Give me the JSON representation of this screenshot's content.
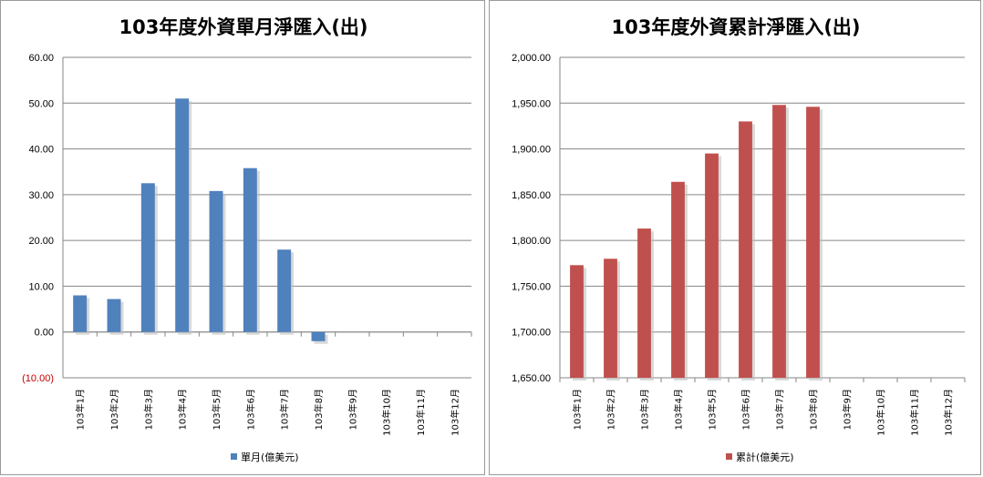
{
  "chart_data": [
    {
      "type": "bar",
      "title": "103年度外資單月淨匯入(出)",
      "categories": [
        "103年1月",
        "103年2月",
        "103年3月",
        "103年4月",
        "103年5月",
        "103年6月",
        "103年7月",
        "103年8月",
        "103年9月",
        "103年10月",
        "103年11月",
        "103年12月"
      ],
      "series": [
        {
          "name": "單月(億美元)",
          "values": [
            8.0,
            7.2,
            32.5,
            51.0,
            30.8,
            35.8,
            18.0,
            -2.0,
            null,
            null,
            null,
            null
          ]
        }
      ],
      "ylim": [
        -10,
        60
      ],
      "yticks": [
        -10,
        0,
        10,
        20,
        30,
        40,
        50,
        60
      ],
      "ytick_labels": [
        "(10.00)",
        "0.00",
        "10.00",
        "20.00",
        "30.00",
        "40.00",
        "50.00",
        "60.00"
      ],
      "color": "#4f81bd",
      "negative_label_color": "#c00000",
      "legend_position": "bottom-center",
      "grid": true
    },
    {
      "type": "bar",
      "title": "103年度外資累計淨匯入(出)",
      "categories": [
        "103年1月",
        "103年2月",
        "103年3月",
        "103年4月",
        "103年5月",
        "103年6月",
        "103年7月",
        "103年8月",
        "103年9月",
        "103年10月",
        "103年11月",
        "103年12月"
      ],
      "series": [
        {
          "name": "累計(億美元)",
          "values": [
            1773,
            1780,
            1813,
            1864,
            1895,
            1930,
            1948,
            1946,
            null,
            null,
            null,
            null
          ]
        }
      ],
      "ylim": [
        1650,
        2000
      ],
      "yticks": [
        1650,
        1700,
        1750,
        1800,
        1850,
        1900,
        1950,
        2000
      ],
      "ytick_labels": [
        "1,650.00",
        "1,700.00",
        "1,750.00",
        "1,800.00",
        "1,850.00",
        "1,900.00",
        "1,950.00",
        "2,000.00"
      ],
      "color": "#c0504d",
      "legend_position": "bottom-center",
      "grid": true
    }
  ]
}
